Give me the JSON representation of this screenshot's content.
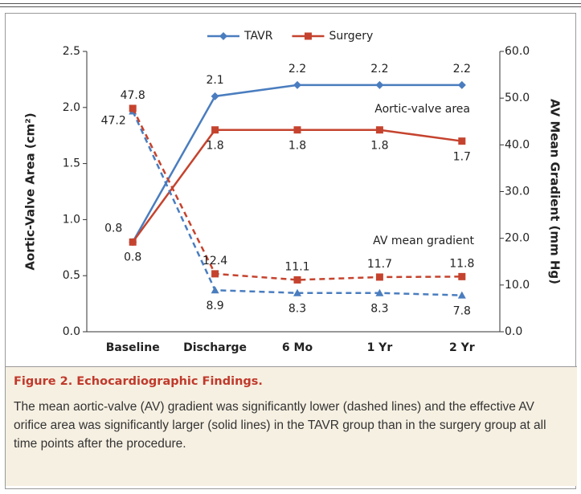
{
  "chart_data": {
    "type": "line",
    "categories": [
      "Baseline",
      "Discharge",
      "6 Mo",
      "1 Yr",
      "2 Yr"
    ],
    "series": [
      {
        "name": "TAVR",
        "color": "#4a7dbf",
        "marker": "diamond",
        "values": [
          0.8,
          2.1,
          2.2,
          2.2,
          2.2
        ]
      },
      {
        "name": "Surgery",
        "color": "#c5432e",
        "marker": "square",
        "values": [
          0.8,
          1.8,
          1.8,
          1.8,
          1.7
        ]
      },
      {
        "color": "#4a7dbf",
        "marker": "triangle",
        "dashed": true,
        "axis": "y2",
        "values": [
          47.2,
          8.9,
          8.3,
          8.3,
          7.8
        ]
      },
      {
        "color": "#c5432e",
        "marker": "square",
        "dashed": true,
        "axis": "y2",
        "values": [
          47.8,
          12.4,
          11.1,
          11.7,
          11.8
        ]
      }
    ],
    "ylabel": "Aortic-Valve Area (cm²)",
    "y2label": "AV Mean Gradient (mm Hg)",
    "ylim": [
      0,
      2.5
    ],
    "yticks": [
      {
        "value": 0,
        "label": "0.0"
      },
      0.5,
      {
        "value": 1,
        "label": "1.0"
      },
      1.5,
      {
        "value": 2,
        "label": "2.0"
      },
      2.5
    ],
    "y2lim": [
      0,
      60
    ],
    "y2ticks": [
      {
        "value": 0,
        "label": "0.0"
      },
      {
        "value": 10,
        "label": "10.0"
      },
      {
        "value": 20,
        "label": "20.0"
      },
      {
        "value": 30,
        "label": "30.0"
      },
      {
        "value": 40,
        "label": "40.0"
      },
      {
        "value": 50,
        "label": "50.0"
      },
      {
        "value": 60,
        "label": "60.0"
      }
    ],
    "annotations": [
      "Aortic-valve area",
      "AV mean gradient"
    ],
    "legend": "top"
  },
  "caption": {
    "label": "Figure 2.",
    "title": "Echocardiographic Findings.",
    "text": "The mean aortic-valve (AV) gradient was significantly lower (dashed lines) and the effective AV orifice area was significantly larger (solid lines) in the TAVR group than in the surgery group at all time points after the procedure."
  }
}
